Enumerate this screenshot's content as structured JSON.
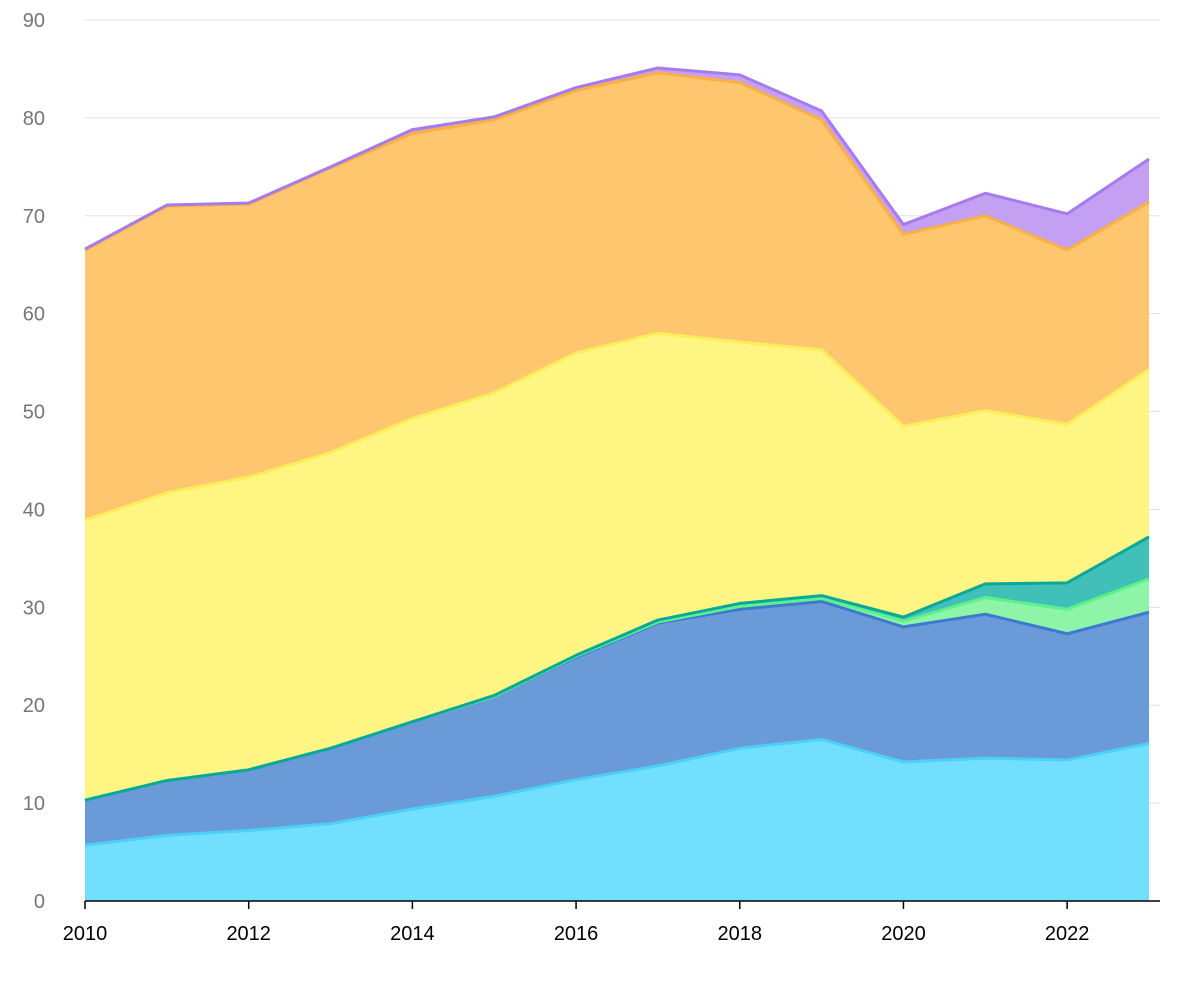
{
  "chart_data": {
    "type": "area",
    "stacked": true,
    "title": "",
    "xlabel": "",
    "ylabel": "",
    "x": [
      2010,
      2011,
      2012,
      2013,
      2014,
      2015,
      2016,
      2017,
      2018,
      2019,
      2020,
      2021,
      2022,
      2023
    ],
    "x_ticks": [
      "2010",
      "2012",
      "2014",
      "2016",
      "2018",
      "2020",
      "2022"
    ],
    "y_ticks": [
      "0",
      "10",
      "20",
      "30",
      "40",
      "50",
      "60",
      "70",
      "80",
      "90"
    ],
    "ylim": [
      0,
      90
    ],
    "xlim": [
      2010,
      2023
    ],
    "grid": "horizontal",
    "legend": "none",
    "series": [
      {
        "values": [
          5.7,
          6.7,
          7.2,
          7.9,
          9.4,
          10.7,
          12.4,
          13.8,
          15.6,
          16.5,
          14.2,
          14.6,
          14.4,
          16.1
        ],
        "fill": "#73dffe",
        "line": "#4dd0f5"
      },
      {
        "values": [
          4.6,
          5.6,
          6.2,
          7.7,
          8.9,
          10.2,
          12.5,
          14.6,
          14.2,
          14.1,
          13.8,
          14.7,
          12.9,
          13.4
        ],
        "fill": "#6b9ad9",
        "line": "#3d78d1"
      },
      {
        "values": [
          0,
          0,
          0,
          0,
          0,
          0,
          0.1,
          0.1,
          0.3,
          0.3,
          0.6,
          1.7,
          2.5,
          3.4
        ],
        "fill": "#8ef5a8",
        "line": "#5ef08a"
      },
      {
        "values": [
          0,
          0,
          0,
          0,
          0,
          0.1,
          0.1,
          0.2,
          0.3,
          0.3,
          0.4,
          1.4,
          2.7,
          4.3
        ],
        "fill": "#40c0b8",
        "line": "#0aa89b"
      },
      {
        "values": [
          28.6,
          29.4,
          29.9,
          30.2,
          31.0,
          30.9,
          30.9,
          29.3,
          26.7,
          25.1,
          19.5,
          17.7,
          16.2,
          17.1
        ],
        "fill": "#fef583",
        "line": "#fbee5a"
      },
      {
        "values": [
          27.6,
          29.3,
          27.9,
          29.1,
          29.1,
          27.9,
          26.8,
          26.6,
          26.5,
          23.5,
          19.6,
          19.9,
          17.8,
          17.1
        ],
        "fill": "#fec66f",
        "line": "#fbb040"
      },
      {
        "values": [
          0.1,
          0.1,
          0.1,
          0.1,
          0.4,
          0.3,
          0.3,
          0.5,
          0.8,
          0.9,
          1.0,
          2.3,
          3.7,
          4.4
        ],
        "fill": "#c4a0f2",
        "line": "#a67cec"
      }
    ]
  }
}
